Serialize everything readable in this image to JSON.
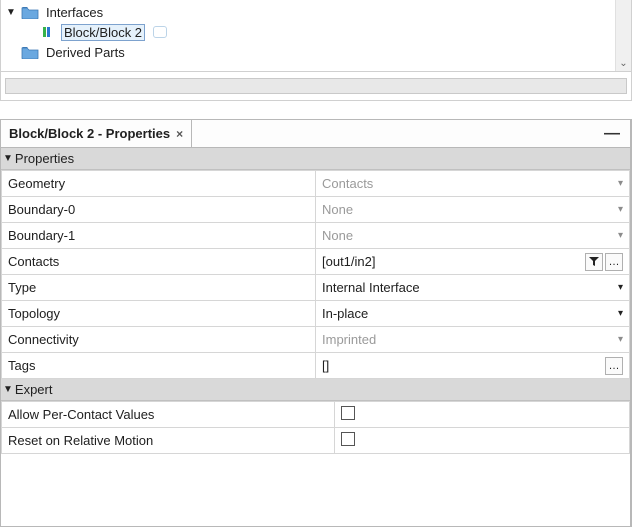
{
  "tree": {
    "nodes": [
      {
        "label": "Interfaces",
        "kind": "folder",
        "expanded": true
      },
      {
        "label": "Block/Block 2",
        "kind": "block",
        "selected": true
      },
      {
        "label": "Derived Parts",
        "kind": "folder",
        "expanded": false
      }
    ]
  },
  "panel": {
    "title": "Block/Block 2 - Properties",
    "sections": {
      "properties": {
        "header": "Properties",
        "rows": [
          {
            "key": "Geometry",
            "value": "Contacts",
            "muted": true,
            "control": "chev-light"
          },
          {
            "key": "Boundary-0",
            "value": "None",
            "muted": true,
            "control": "chev-light"
          },
          {
            "key": "Boundary-1",
            "value": "None",
            "muted": true,
            "control": "chev-light"
          },
          {
            "key": "Contacts",
            "value": "[out1/in2]",
            "muted": false,
            "control": "filter-ellipsis"
          },
          {
            "key": "Type",
            "value": "Internal Interface",
            "muted": false,
            "control": "chev-dark"
          },
          {
            "key": "Topology",
            "value": "In-place",
            "muted": false,
            "control": "chev-dark"
          },
          {
            "key": "Connectivity",
            "value": "Imprinted",
            "muted": true,
            "control": "chev-light"
          },
          {
            "key": "Tags",
            "value": "[]",
            "muted": false,
            "control": "ellipsis"
          }
        ]
      },
      "expert": {
        "header": "Expert",
        "rows": [
          {
            "key": "Allow Per-Contact Values",
            "checked": false
          },
          {
            "key": "Reset on Relative Motion",
            "checked": false
          }
        ]
      }
    }
  },
  "colors": {
    "folder_fill": "#6aa8e0",
    "folder_tab": "#3d79b5",
    "block_green": "#36b24a",
    "block_blue": "#2a77d0",
    "selection_bg": "#e5f1fb",
    "selection_border": "#7da2ce"
  }
}
